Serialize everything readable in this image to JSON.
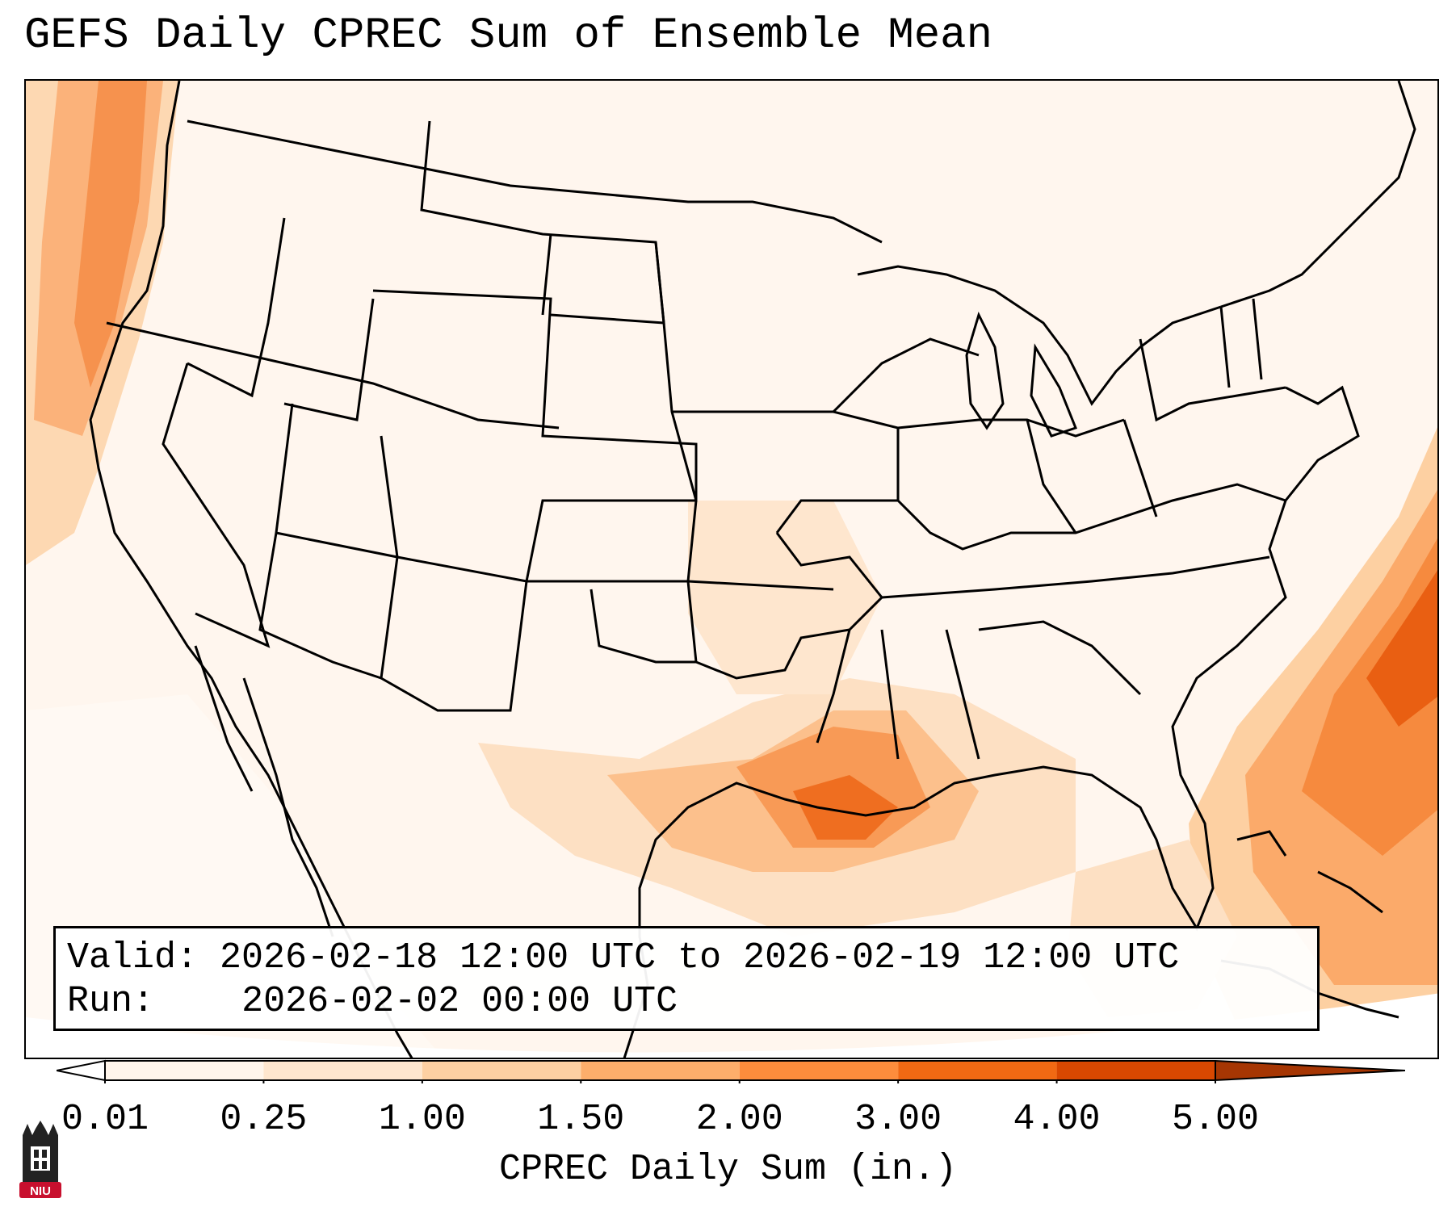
{
  "title": "GEFS Daily CPREC Sum of Ensemble Mean",
  "info": {
    "valid_label": "Valid:",
    "valid_value": "2026-02-18 12:00 UTC to 2026-02-19 12:00 UTC",
    "run_label": "Run:",
    "run_value": "2026-02-02 00:00 UTC"
  },
  "colorbar": {
    "label": "CPREC Daily Sum (in.)",
    "ticks": [
      "0.01",
      "0.25",
      "1.00",
      "1.50",
      "2.00",
      "3.00",
      "4.00",
      "5.00"
    ],
    "colors": [
      "#fff5eb",
      "#fee6ce",
      "#fdd0a2",
      "#fdae6b",
      "#fd8d3c",
      "#f16913",
      "#d94801",
      "#a63603"
    ],
    "extend": "both"
  },
  "logo": {
    "text": "NIU",
    "colors": {
      "tower": "#222222",
      "badge": "#c8102e"
    }
  }
}
